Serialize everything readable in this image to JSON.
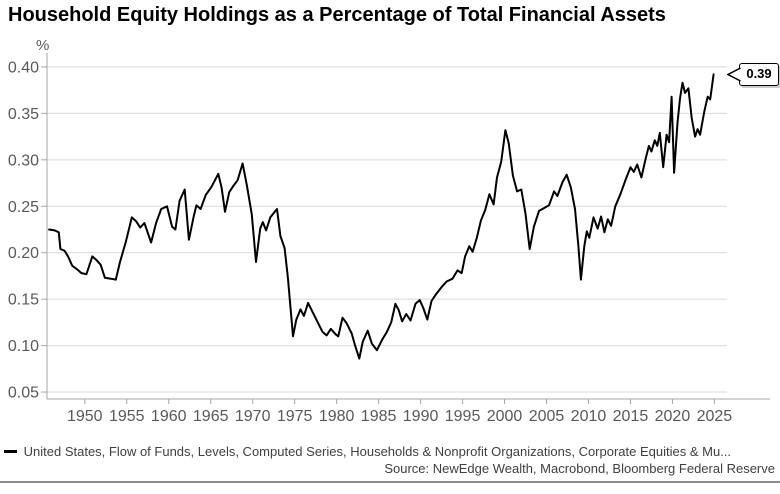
{
  "title": "Household Equity Holdings as a Percentage of Total Financial Assets",
  "y_axis": {
    "unit": "%",
    "tick_labels": [
      "0.40",
      "0.35",
      "0.30",
      "0.25",
      "0.20",
      "0.15",
      "0.10",
      "0.05"
    ]
  },
  "x_axis": {
    "tick_labels": [
      "1950",
      "1955",
      "1960",
      "1965",
      "1970",
      "1975",
      "1980",
      "1985",
      "1990",
      "1995",
      "2000",
      "2005",
      "2010",
      "2015",
      "2020",
      "2025"
    ]
  },
  "legend": {
    "marker": "line-dash",
    "label": "United States, Flow of Funds, Levels, Computed Series, Households & Nonprofit Organizations, Corporate Equities & Mu..."
  },
  "source": "Source: NewEdge Wealth, Macrobond, Bloomberg Federal Reserve",
  "callout": {
    "value": "0.39"
  },
  "colors": {
    "line": "#000000",
    "gridline": "#d9d9d9",
    "axis": "#a6a6a6",
    "tick_text": "#595959",
    "body_text": "#404040",
    "title_text": "#000000",
    "callout_border": "#000000",
    "callout_bg": "#ffffff",
    "bottom_rule": "#8a8a8a"
  },
  "chart_data": {
    "type": "line",
    "title": "Household Equity Holdings as a Percentage of Total Financial Assets",
    "ylabel": "%",
    "xlabel": "",
    "grid": "horizontal",
    "legend_position": "bottom-left",
    "xlim": [
      1945.5,
      2026.5
    ],
    "ylim": [
      0.0425,
      0.415
    ],
    "x_ticks": [
      1950,
      1955,
      1960,
      1965,
      1970,
      1975,
      1980,
      1985,
      1990,
      1995,
      2000,
      2005,
      2010,
      2015,
      2020,
      2025
    ],
    "y_ticks": [
      0.05,
      0.1,
      0.15,
      0.2,
      0.25,
      0.3,
      0.35,
      0.4
    ],
    "last_value_label": 0.39,
    "series": [
      {
        "name": "United States, Flow of Funds, Levels, Computed Series, Households & Nonprofit Organizations, Corporate Equities & Mu...",
        "points": [
          [
            1945.75,
            0.225
          ],
          [
            1946.4,
            0.224
          ],
          [
            1946.9,
            0.222
          ],
          [
            1947.1,
            0.204
          ],
          [
            1947.6,
            0.202
          ],
          [
            1948.0,
            0.196
          ],
          [
            1948.5,
            0.186
          ],
          [
            1949.1,
            0.182
          ],
          [
            1949.6,
            0.178
          ],
          [
            1950.2,
            0.177
          ],
          [
            1950.9,
            0.196
          ],
          [
            1951.4,
            0.192
          ],
          [
            1951.9,
            0.187
          ],
          [
            1952.4,
            0.173
          ],
          [
            1953.1,
            0.172
          ],
          [
            1953.7,
            0.171
          ],
          [
            1954.2,
            0.19
          ],
          [
            1954.9,
            0.212
          ],
          [
            1955.6,
            0.238
          ],
          [
            1956.1,
            0.234
          ],
          [
            1956.6,
            0.227
          ],
          [
            1957.1,
            0.232
          ],
          [
            1957.9,
            0.211
          ],
          [
            1958.5,
            0.232
          ],
          [
            1959.1,
            0.247
          ],
          [
            1959.8,
            0.25
          ],
          [
            1960.4,
            0.228
          ],
          [
            1960.8,
            0.225
          ],
          [
            1961.3,
            0.256
          ],
          [
            1961.9,
            0.268
          ],
          [
            1962.4,
            0.214
          ],
          [
            1963.0,
            0.24
          ],
          [
            1963.3,
            0.251
          ],
          [
            1963.8,
            0.247
          ],
          [
            1964.4,
            0.262
          ],
          [
            1965.1,
            0.271
          ],
          [
            1965.9,
            0.285
          ],
          [
            1966.3,
            0.27
          ],
          [
            1966.7,
            0.244
          ],
          [
            1967.2,
            0.265
          ],
          [
            1967.7,
            0.272
          ],
          [
            1968.2,
            0.278
          ],
          [
            1968.8,
            0.296
          ],
          [
            1969.3,
            0.273
          ],
          [
            1969.9,
            0.241
          ],
          [
            1970.4,
            0.19
          ],
          [
            1970.9,
            0.226
          ],
          [
            1971.2,
            0.233
          ],
          [
            1971.6,
            0.224
          ],
          [
            1972.1,
            0.238
          ],
          [
            1972.9,
            0.247
          ],
          [
            1973.3,
            0.218
          ],
          [
            1973.8,
            0.205
          ],
          [
            1974.2,
            0.173
          ],
          [
            1974.8,
            0.11
          ],
          [
            1975.2,
            0.128
          ],
          [
            1975.7,
            0.139
          ],
          [
            1976.1,
            0.132
          ],
          [
            1976.6,
            0.146
          ],
          [
            1977.2,
            0.135
          ],
          [
            1977.8,
            0.124
          ],
          [
            1978.3,
            0.115
          ],
          [
            1978.8,
            0.111
          ],
          [
            1979.3,
            0.118
          ],
          [
            1979.9,
            0.112
          ],
          [
            1980.2,
            0.11
          ],
          [
            1980.7,
            0.13
          ],
          [
            1981.2,
            0.124
          ],
          [
            1981.8,
            0.113
          ],
          [
            1982.2,
            0.1
          ],
          [
            1982.7,
            0.086
          ],
          [
            1983.1,
            0.104
          ],
          [
            1983.7,
            0.116
          ],
          [
            1984.2,
            0.102
          ],
          [
            1984.8,
            0.095
          ],
          [
            1985.4,
            0.106
          ],
          [
            1986.0,
            0.115
          ],
          [
            1986.5,
            0.125
          ],
          [
            1987.0,
            0.145
          ],
          [
            1987.4,
            0.138
          ],
          [
            1987.8,
            0.126
          ],
          [
            1988.3,
            0.134
          ],
          [
            1988.8,
            0.127
          ],
          [
            1989.4,
            0.145
          ],
          [
            1989.9,
            0.149
          ],
          [
            1990.3,
            0.141
          ],
          [
            1990.8,
            0.128
          ],
          [
            1991.3,
            0.148
          ],
          [
            1991.9,
            0.156
          ],
          [
            1992.5,
            0.163
          ],
          [
            1993.1,
            0.169
          ],
          [
            1993.8,
            0.172
          ],
          [
            1994.4,
            0.181
          ],
          [
            1994.9,
            0.178
          ],
          [
            1995.3,
            0.196
          ],
          [
            1995.8,
            0.207
          ],
          [
            1996.2,
            0.201
          ],
          [
            1996.7,
            0.216
          ],
          [
            1997.2,
            0.235
          ],
          [
            1997.7,
            0.246
          ],
          [
            1998.2,
            0.263
          ],
          [
            1998.7,
            0.252
          ],
          [
            1999.1,
            0.281
          ],
          [
            1999.6,
            0.298
          ],
          [
            2000.1,
            0.332
          ],
          [
            2000.5,
            0.318
          ],
          [
            2001.0,
            0.283
          ],
          [
            2001.5,
            0.266
          ],
          [
            2002.0,
            0.268
          ],
          [
            2002.5,
            0.242
          ],
          [
            2003.0,
            0.204
          ],
          [
            2003.5,
            0.228
          ],
          [
            2004.1,
            0.245
          ],
          [
            2004.7,
            0.248
          ],
          [
            2005.3,
            0.251
          ],
          [
            2005.9,
            0.266
          ],
          [
            2006.3,
            0.261
          ],
          [
            2006.9,
            0.276
          ],
          [
            2007.4,
            0.284
          ],
          [
            2007.9,
            0.27
          ],
          [
            2008.4,
            0.247
          ],
          [
            2008.8,
            0.207
          ],
          [
            2009.1,
            0.171
          ],
          [
            2009.5,
            0.207
          ],
          [
            2009.8,
            0.223
          ],
          [
            2010.1,
            0.216
          ],
          [
            2010.6,
            0.238
          ],
          [
            2011.1,
            0.226
          ],
          [
            2011.5,
            0.239
          ],
          [
            2011.9,
            0.222
          ],
          [
            2012.3,
            0.236
          ],
          [
            2012.7,
            0.229
          ],
          [
            2013.2,
            0.25
          ],
          [
            2013.8,
            0.263
          ],
          [
            2014.4,
            0.278
          ],
          [
            2015.0,
            0.292
          ],
          [
            2015.4,
            0.287
          ],
          [
            2015.8,
            0.295
          ],
          [
            2016.3,
            0.281
          ],
          [
            2016.8,
            0.301
          ],
          [
            2017.2,
            0.315
          ],
          [
            2017.5,
            0.309
          ],
          [
            2017.9,
            0.321
          ],
          [
            2018.2,
            0.315
          ],
          [
            2018.5,
            0.329
          ],
          [
            2018.9,
            0.292
          ],
          [
            2019.3,
            0.327
          ],
          [
            2019.6,
            0.319
          ],
          [
            2019.9,
            0.368
          ],
          [
            2020.2,
            0.286
          ],
          [
            2020.6,
            0.34
          ],
          [
            2020.9,
            0.366
          ],
          [
            2021.2,
            0.383
          ],
          [
            2021.5,
            0.372
          ],
          [
            2021.9,
            0.377
          ],
          [
            2022.3,
            0.345
          ],
          [
            2022.7,
            0.325
          ],
          [
            2023.0,
            0.333
          ],
          [
            2023.3,
            0.327
          ],
          [
            2023.8,
            0.352
          ],
          [
            2024.2,
            0.368
          ],
          [
            2024.5,
            0.365
          ],
          [
            2024.9,
            0.392
          ]
        ]
      }
    ]
  }
}
